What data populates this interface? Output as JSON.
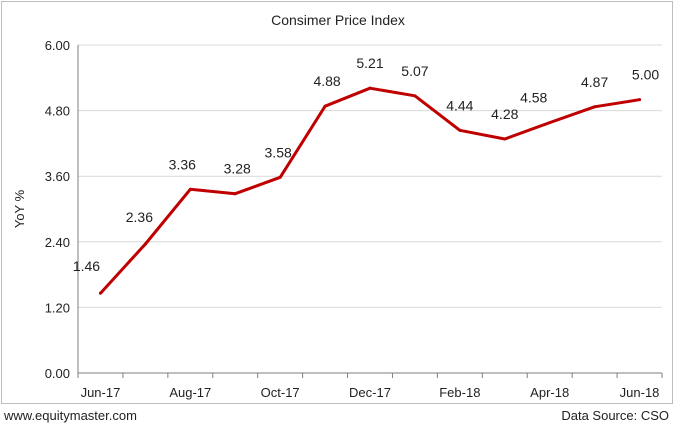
{
  "footer": {
    "website": "www.equitymaster.com",
    "source": "Data Source: CSO"
  },
  "colors": {
    "line": "#c00000",
    "grid": "#d9d9d9",
    "axis": "#7f7f7f"
  },
  "chart_data": {
    "type": "line",
    "title": "Consimer Price Index",
    "xlabel": "",
    "ylabel": "YoY %",
    "ylim": [
      0,
      6
    ],
    "yticks": [
      "0.00",
      "1.20",
      "2.40",
      "3.60",
      "4.80",
      "6.00"
    ],
    "grid": true,
    "legend": "none",
    "x": [
      "Jun-17",
      "Jul-17",
      "Aug-17",
      "Sep-17",
      "Oct-17",
      "Nov-17",
      "Dec-17",
      "Jan-18",
      "Feb-18",
      "Mar-18",
      "Apr-18",
      "May-18",
      "Jun-18"
    ],
    "xtick_labels": [
      "Jun-17",
      "",
      "Aug-17",
      "",
      "Oct-17",
      "",
      "Dec-17",
      "",
      "Feb-18",
      "",
      "Apr-18",
      "",
      "Jun-18"
    ],
    "series": [
      {
        "values": [
          1.46,
          2.36,
          3.36,
          3.28,
          3.58,
          4.88,
          5.21,
          5.07,
          4.44,
          4.28,
          4.58,
          4.87,
          5.0
        ],
        "labels": [
          "1.46",
          "2.36",
          "3.36",
          "3.28",
          "3.58",
          "4.88",
          "5.21",
          "5.07",
          "4.44",
          "4.28",
          "4.58",
          "4.87",
          "5.00"
        ]
      }
    ]
  }
}
